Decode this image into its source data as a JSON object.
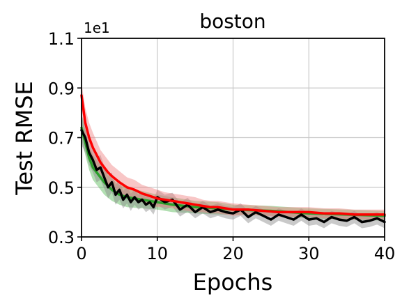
{
  "chart_data": {
    "type": "line",
    "title": "boston",
    "xlabel": "Epochs",
    "ylabel": "Test RMSE",
    "y_offset_text": "1e1",
    "xlim": [
      0,
      40
    ],
    "ylim": [
      0.3,
      1.1
    ],
    "xticks": [
      0,
      10,
      20,
      30,
      40
    ],
    "xtick_labels": [
      "0",
      "10",
      "20",
      "30",
      "40"
    ],
    "yticks": [
      0.3,
      0.5,
      0.7,
      0.9,
      1.1
    ],
    "ytick_labels": [
      "0.3",
      "0.5",
      "0.7",
      "0.9",
      "1.1"
    ],
    "grid": true,
    "legend": false,
    "series": [
      {
        "color": "#2ca02c",
        "band_color": "#3fae3f",
        "band_opacity": 0.4,
        "x": [
          0,
          0.5,
          1,
          1.5,
          2,
          3,
          4,
          5,
          6,
          8,
          10,
          12,
          15,
          18,
          20,
          25,
          30,
          35,
          40
        ],
        "y": [
          0.74,
          0.68,
          0.62,
          0.58,
          0.56,
          0.52,
          0.49,
          0.47,
          0.46,
          0.45,
          0.44,
          0.43,
          0.42,
          0.415,
          0.41,
          0.405,
          0.395,
          0.39,
          0.385
        ],
        "band": [
          0.05,
          0.05,
          0.05,
          0.05,
          0.05,
          0.05,
          0.045,
          0.04,
          0.04,
          0.035,
          0.03,
          0.03,
          0.025,
          0.025,
          0.02,
          0.02,
          0.02,
          0.02,
          0.02
        ]
      },
      {
        "color": "#000000",
        "band_color": "#888888",
        "band_opacity": 0.45,
        "x": [
          0,
          0.5,
          1,
          1.5,
          2,
          2.5,
          3,
          3.5,
          4,
          4.5,
          5,
          5.5,
          6,
          6.5,
          7,
          7.5,
          8,
          8.5,
          9,
          9.5,
          10,
          11,
          12,
          13,
          14,
          15,
          16,
          17,
          18,
          19,
          20,
          21,
          22,
          23,
          24,
          25,
          26,
          27,
          28,
          29,
          30,
          31,
          32,
          33,
          34,
          35,
          36,
          37,
          38,
          39,
          40
        ],
        "y": [
          0.73,
          0.7,
          0.64,
          0.61,
          0.57,
          0.58,
          0.54,
          0.5,
          0.52,
          0.47,
          0.49,
          0.45,
          0.47,
          0.44,
          0.46,
          0.44,
          0.45,
          0.43,
          0.44,
          0.42,
          0.46,
          0.44,
          0.45,
          0.41,
          0.43,
          0.4,
          0.42,
          0.4,
          0.41,
          0.4,
          0.395,
          0.41,
          0.38,
          0.4,
          0.385,
          0.37,
          0.39,
          0.38,
          0.37,
          0.39,
          0.37,
          0.375,
          0.36,
          0.38,
          0.37,
          0.365,
          0.38,
          0.36,
          0.365,
          0.375,
          0.36
        ],
        "band": [
          0.06,
          0.06,
          0.05,
          0.05,
          0.05,
          0.05,
          0.045,
          0.045,
          0.04,
          0.04,
          0.04,
          0.035,
          0.035,
          0.035,
          0.03,
          0.03,
          0.03,
          0.03,
          0.03,
          0.03,
          0.03,
          0.03,
          0.028,
          0.028,
          0.028,
          0.025,
          0.025,
          0.025,
          0.025,
          0.025,
          0.025,
          0.025,
          0.025,
          0.025,
          0.025,
          0.025,
          0.025,
          0.025,
          0.025,
          0.025,
          0.025,
          0.025,
          0.025,
          0.025,
          0.025,
          0.025,
          0.025,
          0.025,
          0.025,
          0.025,
          0.025
        ]
      },
      {
        "color": "#ff0000",
        "band_color": "#f08080",
        "band_opacity": 0.45,
        "x": [
          0,
          0.5,
          1,
          1.5,
          2,
          2.5,
          3,
          3.5,
          4,
          5,
          6,
          7,
          8,
          9,
          10,
          11,
          12,
          13,
          14,
          15,
          16,
          17,
          18,
          19,
          20,
          22,
          24,
          26,
          28,
          30,
          32,
          34,
          36,
          38,
          40
        ],
        "y": [
          0.87,
          0.76,
          0.7,
          0.66,
          0.63,
          0.6,
          0.58,
          0.56,
          0.545,
          0.52,
          0.5,
          0.49,
          0.475,
          0.465,
          0.455,
          0.45,
          0.445,
          0.44,
          0.435,
          0.43,
          0.425,
          0.42,
          0.42,
          0.415,
          0.41,
          0.41,
          0.405,
          0.4,
          0.4,
          0.4,
          0.395,
          0.395,
          0.39,
          0.39,
          0.39
        ],
        "band": [
          0.05,
          0.06,
          0.06,
          0.06,
          0.055,
          0.05,
          0.05,
          0.05,
          0.045,
          0.045,
          0.04,
          0.04,
          0.035,
          0.035,
          0.035,
          0.03,
          0.03,
          0.03,
          0.03,
          0.03,
          0.025,
          0.025,
          0.025,
          0.025,
          0.025,
          0.02,
          0.02,
          0.02,
          0.02,
          0.02,
          0.02,
          0.02,
          0.02,
          0.02,
          0.02
        ]
      }
    ]
  }
}
